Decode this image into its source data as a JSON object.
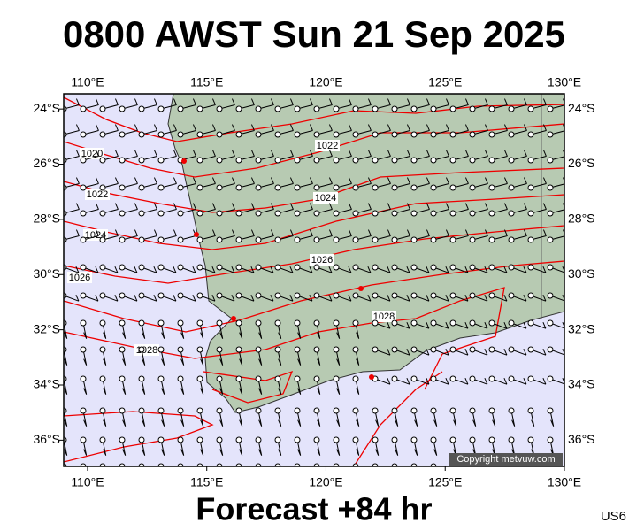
{
  "title": "0800 AWST Sun 21 Sep 2025",
  "footer": "Forecast +84 hr",
  "model": "US6",
  "copyright": "Copyright metvuw.com",
  "map": {
    "lonlim": [
      109,
      130
    ],
    "latlim": [
      23.45,
      36.95
    ],
    "lon_ticks": [
      {
        "value": 110,
        "label": "110°E"
      },
      {
        "value": 115,
        "label": "115°E"
      },
      {
        "value": 120,
        "label": "120°E"
      },
      {
        "value": 125,
        "label": "125°E"
      },
      {
        "value": 130,
        "label": "130°E"
      }
    ],
    "lat_ticks": [
      {
        "value": 24,
        "label": "24°S"
      },
      {
        "value": 26,
        "label": "26°S"
      },
      {
        "value": 28,
        "label": "28°S"
      },
      {
        "value": 30,
        "label": "30°S"
      },
      {
        "value": 32,
        "label": "32°S"
      },
      {
        "value": 34,
        "label": "34°S"
      },
      {
        "value": 36,
        "label": "36°S"
      }
    ],
    "isobar_labels": [
      "1020",
      "1022",
      "1024",
      "1026",
      "1028",
      "1022",
      "1024",
      "1026",
      "1028"
    ]
  }
}
